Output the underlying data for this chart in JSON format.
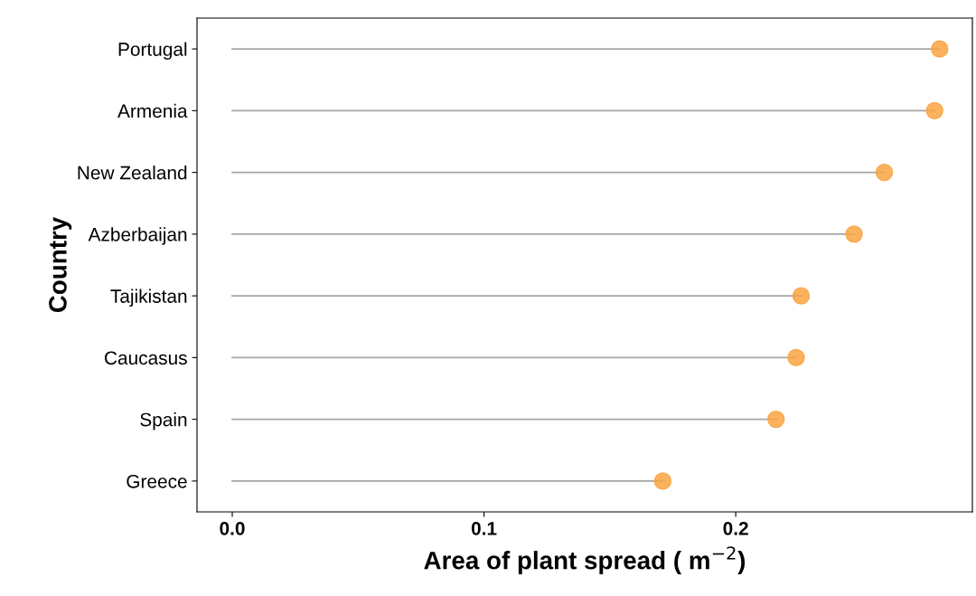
{
  "chart_data": {
    "type": "lollipop",
    "orientation": "horizontal",
    "xlabel": "Area of plant spread ( m$^{−2}$)",
    "ylabel": "Country",
    "categories": [
      "Portugal",
      "Armenia",
      "New Zealand",
      "Azberbaijan",
      "Tajikistan",
      "Caucasus",
      "Spain",
      "Greece"
    ],
    "values": [
      0.281,
      0.279,
      0.259,
      0.247,
      0.226,
      0.224,
      0.216,
      0.171
    ],
    "color": "#f9a443",
    "xlim": [
      -0.014,
      0.294
    ],
    "xticks": [
      {
        "value": 0,
        "label": "0.0"
      },
      0.1,
      0.2
    ],
    "grid": false,
    "marker": "circle"
  }
}
